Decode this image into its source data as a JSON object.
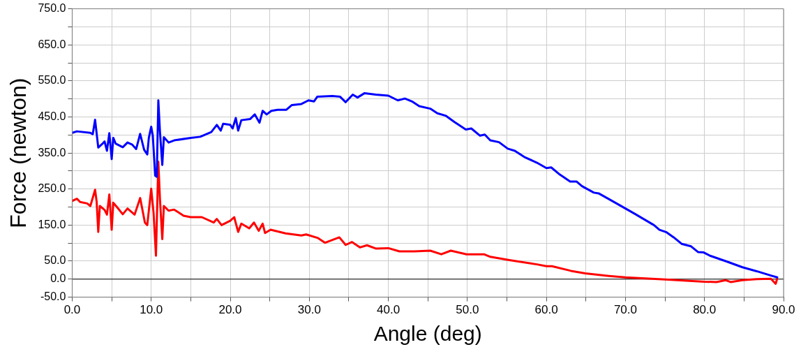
{
  "chart_data": {
    "type": "line",
    "xlabel": "Angle (deg)",
    "ylabel": "Force (newton)",
    "xlim": [
      0,
      90
    ],
    "xticks": [
      {
        "value": 0,
        "label": "0.0"
      },
      {
        "value": 5,
        "label": null
      },
      {
        "value": 10,
        "label": "10.0"
      },
      {
        "value": 15,
        "label": null
      },
      {
        "value": 20,
        "label": "20.0"
      },
      {
        "value": 25,
        "label": null
      },
      {
        "value": 30,
        "label": "30.0"
      },
      {
        "value": 35,
        "label": null
      },
      {
        "value": 40,
        "label": "40.0"
      },
      {
        "value": 45,
        "label": null
      },
      {
        "value": 50,
        "label": "50.0"
      },
      {
        "value": 55,
        "label": null
      },
      {
        "value": 60,
        "label": "60.0"
      },
      {
        "value": 65,
        "label": null
      },
      {
        "value": 70,
        "label": "70.0"
      },
      {
        "value": 75,
        "label": null
      },
      {
        "value": 80,
        "label": "80.0"
      },
      {
        "value": 85,
        "label": null
      },
      {
        "value": 90,
        "label": "90.0"
      }
    ],
    "ylim": [
      -50,
      750
    ],
    "yticks": [
      {
        "value": -50,
        "label": "-50.0"
      },
      {
        "value": 0,
        "label": "0.0"
      },
      {
        "value": 50,
        "label": "50.0"
      },
      {
        "value": 100,
        "label": null
      },
      {
        "value": 150,
        "label": "150.0"
      },
      {
        "value": 200,
        "label": null
      },
      {
        "value": 250,
        "label": "250.0"
      },
      {
        "value": 300,
        "label": null
      },
      {
        "value": 350,
        "label": "350.0"
      },
      {
        "value": 400,
        "label": null
      },
      {
        "value": 450,
        "label": "450.0"
      },
      {
        "value": 500,
        "label": null
      },
      {
        "value": 550,
        "label": "550.0"
      },
      {
        "value": 600,
        "label": null
      },
      {
        "value": 650,
        "label": "650.0"
      },
      {
        "value": 700,
        "label": null
      },
      {
        "value": 750,
        "label": "750.0"
      }
    ],
    "grid": true,
    "legend": false,
    "marker": "none",
    "line_style": "solid",
    "ref_lines": [
      {
        "axis": "y",
        "value": 0,
        "color": "#000000"
      }
    ],
    "series": [
      {
        "color": "#0000ff",
        "x": [
          0,
          0.6,
          2.3,
          2.6,
          2.9,
          3.3,
          3.8,
          4.1,
          4.4,
          4.7,
          5.0,
          5.2,
          5.5,
          6.4,
          7.0,
          7.6,
          8.1,
          8.6,
          9.1,
          9.5,
          9.7,
          10.0,
          10.2,
          10.5,
          10.7,
          10.9,
          11.1,
          11.4,
          11.6,
          12.2,
          12.9,
          15.0,
          16.2,
          17.6,
          18.3,
          18.8,
          19.1,
          20.0,
          20.3,
          20.7,
          21.0,
          21.4,
          22.5,
          23.1,
          23.7,
          24.1,
          24.6,
          25.2,
          26.0,
          27.1,
          27.8,
          29.0,
          29.9,
          30.6,
          31.0,
          32.9,
          33.9,
          34.6,
          35.5,
          36.1,
          37.0,
          38.4,
          40.0,
          41.2,
          42.1,
          43.0,
          43.9,
          45.3,
          46.2,
          47.3,
          48.3,
          49.8,
          50.5,
          51.6,
          52.2,
          52.9,
          54.0,
          55.1,
          56.0,
          57.2,
          58.8,
          60.0,
          60.6,
          61.7,
          63.0,
          63.8,
          64.5,
          66.0,
          66.6,
          67.9,
          70.0,
          71.2,
          73.6,
          74.3,
          75.2,
          76.1,
          77.1,
          78.3,
          79.2,
          79.9,
          80.7,
          82.8,
          84.8,
          86.6,
          88.4,
          89.2
        ],
        "values": [
          406,
          410,
          406,
          402,
          442,
          365,
          375,
          382,
          356,
          405,
          333,
          392,
          376,
          366,
          379,
          373,
          361,
          403,
          359,
          346,
          392,
          423,
          398,
          287,
          284,
          496,
          411,
          317,
          394,
          379,
          385,
          392,
          395,
          408,
          428,
          412,
          431,
          428,
          418,
          447,
          412,
          441,
          444,
          457,
          434,
          467,
          457,
          467,
          470,
          470,
          483,
          486,
          496,
          493,
          506,
          508,
          506,
          491,
          512,
          504,
          516,
          512,
          509,
          496,
          501,
          493,
          480,
          473,
          460,
          453,
          437,
          415,
          418,
          398,
          401,
          385,
          380,
          362,
          356,
          339,
          323,
          308,
          310,
          290,
          271,
          271,
          258,
          240,
          238,
          222,
          196,
          181,
          150,
          137,
          130,
          116,
          98,
          91,
          75,
          74,
          65,
          49,
          33,
          22,
          10,
          5
        ]
      },
      {
        "color": "#ff0000",
        "x": [
          0,
          0.6,
          1.0,
          1.9,
          2.3,
          2.9,
          3.1,
          3.3,
          3.5,
          4.1,
          4.4,
          4.7,
          5.0,
          5.2,
          5.7,
          6.4,
          7.0,
          7.9,
          8.6,
          9.2,
          9.5,
          10.0,
          10.3,
          10.6,
          10.9,
          11.1,
          11.4,
          11.6,
          12.2,
          12.9,
          14.1,
          15.0,
          16.4,
          17.9,
          18.3,
          18.9,
          20.0,
          20.5,
          21.0,
          21.4,
          22.4,
          23.0,
          23.6,
          24.1,
          24.4,
          25.1,
          27.0,
          29.0,
          29.6,
          31.1,
          32.0,
          33.8,
          34.6,
          35.4,
          36.4,
          37.3,
          38.4,
          40.0,
          41.4,
          43.3,
          45.3,
          46.7,
          47.9,
          49.9,
          52.1,
          52.9,
          55.3,
          58.8,
          60.0,
          60.7,
          63.1,
          64.9,
          67.9,
          70.0,
          75.0,
          80.0,
          81.5,
          82.7,
          83.3,
          84.8,
          86.6,
          88.4,
          89.0,
          89.2
        ],
        "values": [
          217,
          223,
          214,
          210,
          203,
          248,
          214,
          131,
          203,
          192,
          179,
          235,
          137,
          212,
          199,
          180,
          196,
          179,
          225,
          157,
          150,
          251,
          183,
          65,
          326,
          224,
          111,
          203,
          190,
          193,
          176,
          172,
          172,
          157,
          167,
          150,
          162,
          172,
          131,
          154,
          141,
          157,
          134,
          154,
          128,
          137,
          127,
          121,
          124,
          114,
          101,
          116,
          95,
          103,
          88,
          94,
          85,
          86,
          77,
          77,
          79,
          69,
          79,
          69,
          69,
          62,
          53,
          41,
          36,
          36,
          23,
          16,
          9,
          5,
          -1,
          -7,
          -8,
          -3,
          -8,
          -3,
          0,
          1,
          -13,
          2
        ]
      }
    ]
  }
}
